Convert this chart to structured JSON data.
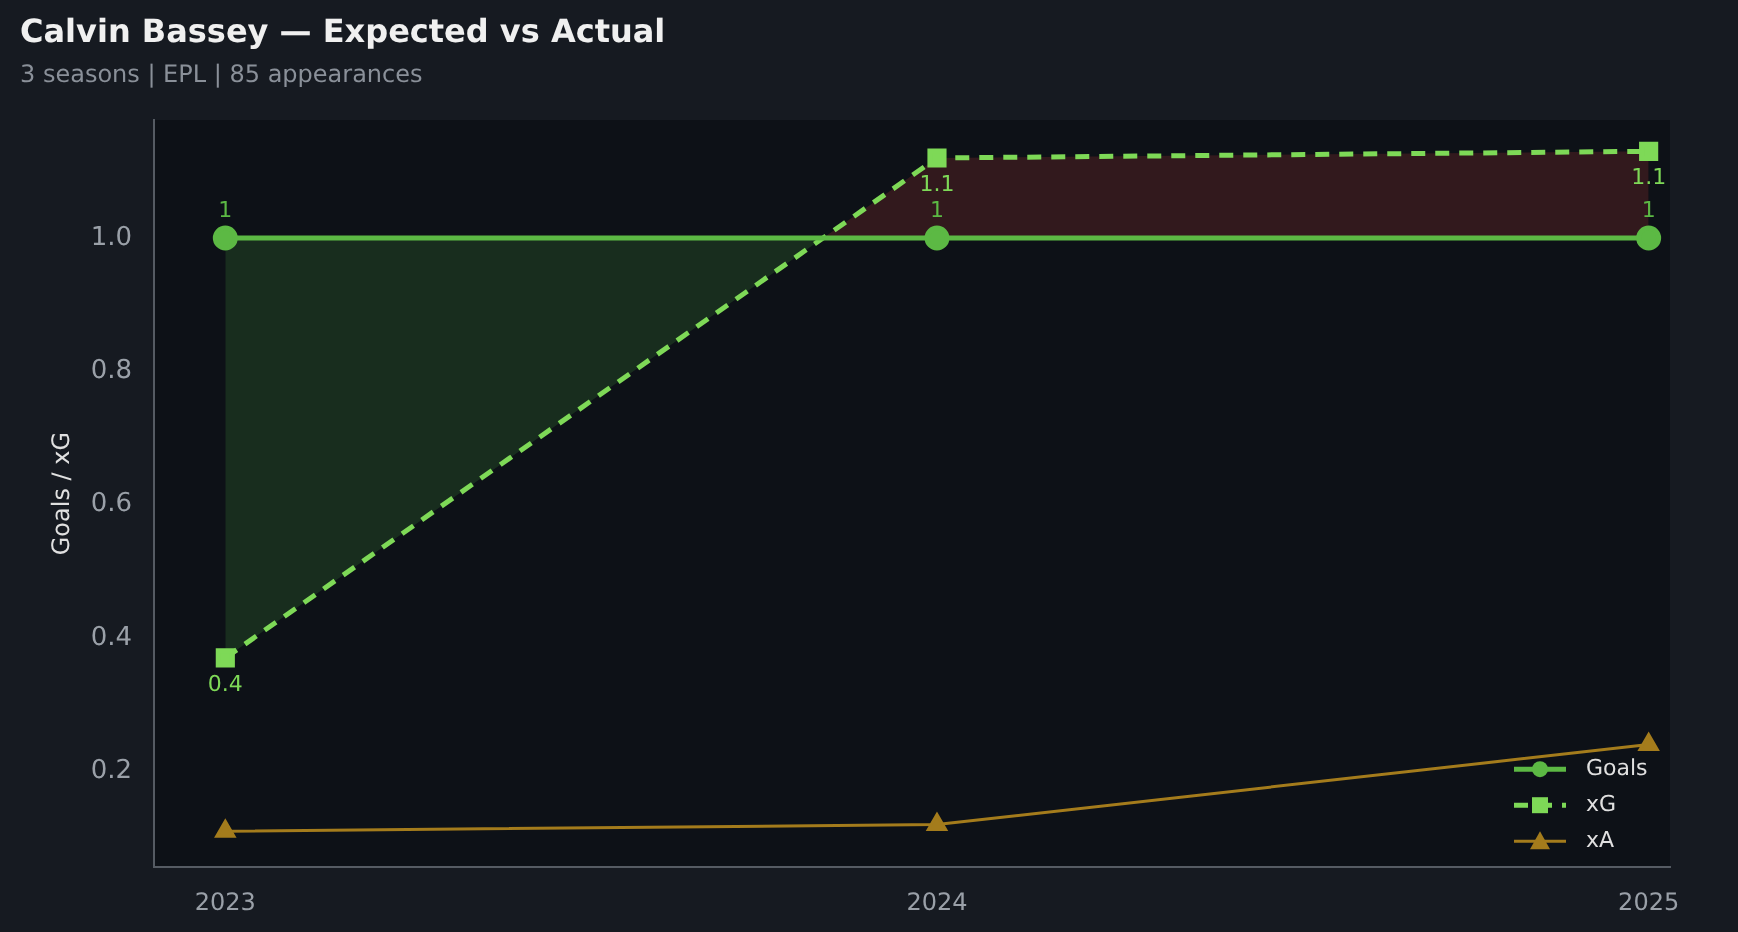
{
  "chart_data": {
    "type": "line",
    "title": "Calvin Bassey — Expected vs Actual",
    "subtitle": "3 seasons | EPL | 85 appearances",
    "ylabel": "Goals / xG",
    "x": [
      2023,
      2024,
      2025
    ],
    "xlim": [
      2022.9,
      2025.03
    ],
    "xticks": [
      2023,
      2024,
      2025
    ],
    "ylim": [
      0.056,
      1.177
    ],
    "yticks": [
      0.2,
      0.4,
      0.6,
      0.8,
      {
        "value": 1,
        "label": "1.0"
      }
    ],
    "grid": false,
    "legend": "bottom right",
    "series": [
      {
        "name": "Goals",
        "color": "#5cb944",
        "values": [
          1,
          1,
          1
        ],
        "marker": "circle",
        "line_style": "solid",
        "value_labels": [
          "1",
          "1",
          "1"
        ]
      },
      {
        "name": "xG",
        "color": "#7ed957",
        "values": [
          0.37,
          1.12,
          1.13
        ],
        "marker": "square",
        "line_style": "dashed",
        "value_labels": [
          "0.4",
          "1.1",
          "1.1"
        ]
      },
      {
        "name": "xA",
        "color": "#a47c1c",
        "values": [
          0.11,
          0.12,
          0.24
        ],
        "marker": "triangle",
        "line_style": "solid"
      }
    ]
  }
}
